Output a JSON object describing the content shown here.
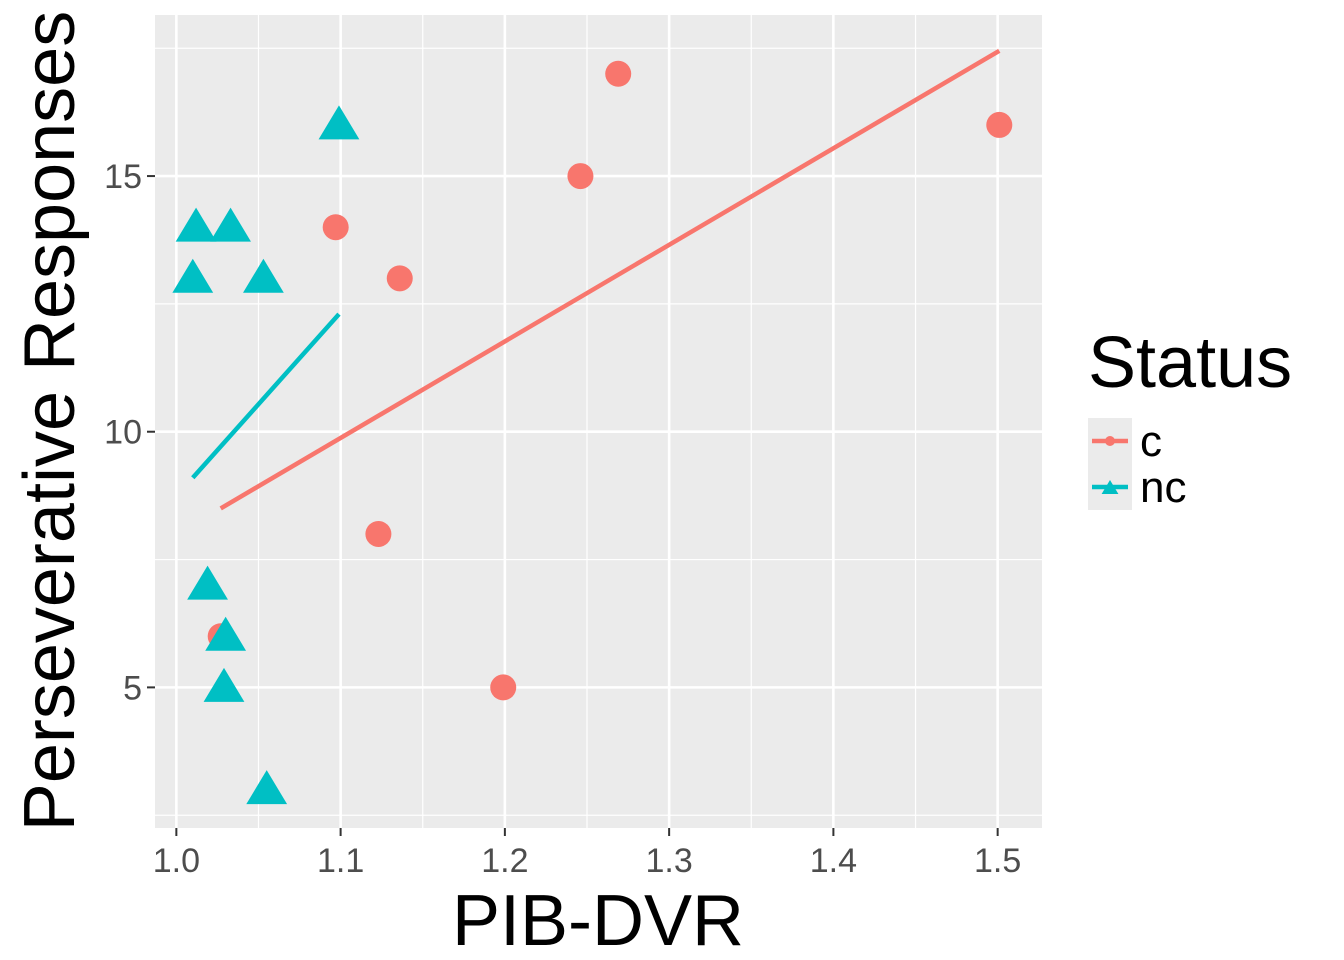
{
  "chart_data": {
    "type": "scatter",
    "xlabel": "PIB-DVR",
    "ylabel": "Perseverative Responses",
    "xlim": [
      0.987,
      1.527
    ],
    "ylim": [
      2.25,
      18.15
    ],
    "x_ticks": [
      1.0,
      1.1,
      1.2,
      1.3,
      1.4,
      1.5
    ],
    "x_tick_labels": [
      "1.0",
      "1.1",
      "1.2",
      "1.3",
      "1.4",
      "1.5"
    ],
    "y_ticks": [
      5,
      10,
      15
    ],
    "y_tick_labels": [
      "5",
      "10",
      "15"
    ],
    "grid": true,
    "legend": {
      "title": "Status",
      "position": "right",
      "entries": [
        {
          "label": "c",
          "color": "#F8766D",
          "shape": "circle"
        },
        {
          "label": "nc",
          "color": "#00BFC4",
          "shape": "triangle"
        }
      ]
    },
    "series": [
      {
        "name": "c",
        "color": "#F8766D",
        "shape": "circle",
        "points": [
          {
            "x": 1.027,
            "y": 6
          },
          {
            "x": 1.097,
            "y": 14
          },
          {
            "x": 1.123,
            "y": 8
          },
          {
            "x": 1.136,
            "y": 13
          },
          {
            "x": 1.199,
            "y": 5
          },
          {
            "x": 1.246,
            "y": 15
          },
          {
            "x": 1.269,
            "y": 17
          },
          {
            "x": 1.501,
            "y": 16
          }
        ],
        "fit_line": [
          {
            "x": 1.027,
            "y": 8.5
          },
          {
            "x": 1.501,
            "y": 17.45
          }
        ]
      },
      {
        "name": "nc",
        "color": "#00BFC4",
        "shape": "triangle",
        "points": [
          {
            "x": 1.01,
            "y": 13
          },
          {
            "x": 1.012,
            "y": 14
          },
          {
            "x": 1.019,
            "y": 7
          },
          {
            "x": 1.029,
            "y": 5
          },
          {
            "x": 1.03,
            "y": 6
          },
          {
            "x": 1.033,
            "y": 14
          },
          {
            "x": 1.053,
            "y": 13
          },
          {
            "x": 1.055,
            "y": 3
          },
          {
            "x": 1.099,
            "y": 16
          }
        ],
        "fit_line": [
          {
            "x": 1.01,
            "y": 9.1
          },
          {
            "x": 1.099,
            "y": 12.3
          }
        ]
      }
    ]
  }
}
